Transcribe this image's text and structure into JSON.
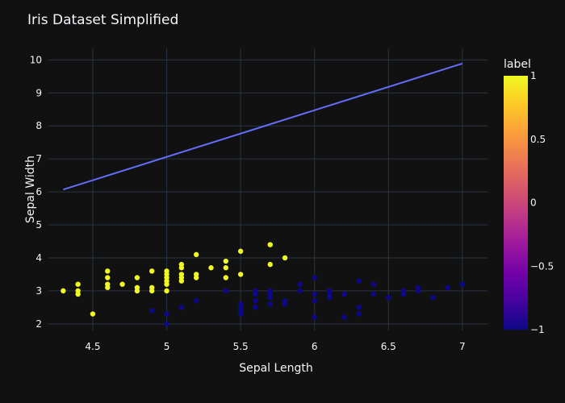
{
  "chart_data": {
    "type": "scatter",
    "title": "Iris Dataset Simplified",
    "xlabel": "Sepal Length",
    "ylabel": "Sepal Width",
    "xlim": [
      4.2,
      7.17
    ],
    "ylim": [
      1.8,
      10.35
    ],
    "x_ticks": [
      4.5,
      5,
      5.5,
      6,
      6.5,
      7
    ],
    "y_ticks": [
      2,
      3,
      4,
      5,
      6,
      7,
      8,
      9,
      10
    ],
    "grid": true,
    "colorbar": {
      "title": "label",
      "range": [
        -1,
        1
      ],
      "ticks": [
        1,
        0.5,
        0,
        -0.5,
        -1
      ],
      "tick_labels": [
        "1",
        "0.5",
        "0",
        "−0.5",
        "−1"
      ],
      "colorscale": [
        "#0d0887",
        "#46039f",
        "#7201a8",
        "#9c179e",
        "#bd3786",
        "#d8576b",
        "#ed7953",
        "#fb9f3a",
        "#fdca26",
        "#f0f921"
      ]
    },
    "line": {
      "x": [
        4.3,
        7.0
      ],
      "y": [
        6.07,
        9.89
      ],
      "color": "#636efa"
    },
    "series": [
      {
        "label": 1,
        "color": "#f0f921",
        "points": [
          [
            4.3,
            3.0
          ],
          [
            4.4,
            2.9
          ],
          [
            4.4,
            3.0
          ],
          [
            4.4,
            3.2
          ],
          [
            4.5,
            2.3
          ],
          [
            4.6,
            3.1
          ],
          [
            4.6,
            3.2
          ],
          [
            4.6,
            3.4
          ],
          [
            4.6,
            3.6
          ],
          [
            4.7,
            3.2
          ],
          [
            4.8,
            3.0
          ],
          [
            4.8,
            3.1
          ],
          [
            4.8,
            3.4
          ],
          [
            4.9,
            3.0
          ],
          [
            4.9,
            3.1
          ],
          [
            4.9,
            3.6
          ],
          [
            5.0,
            3.0
          ],
          [
            5.0,
            3.2
          ],
          [
            5.0,
            3.3
          ],
          [
            5.0,
            3.4
          ],
          [
            5.0,
            3.5
          ],
          [
            5.0,
            3.6
          ],
          [
            5.1,
            3.3
          ],
          [
            5.1,
            3.4
          ],
          [
            5.1,
            3.5
          ],
          [
            5.1,
            3.7
          ],
          [
            5.1,
            3.8
          ],
          [
            5.2,
            3.4
          ],
          [
            5.2,
            3.5
          ],
          [
            5.2,
            4.1
          ],
          [
            5.3,
            3.7
          ],
          [
            5.4,
            3.4
          ],
          [
            5.4,
            3.7
          ],
          [
            5.4,
            3.9
          ],
          [
            5.5,
            3.5
          ],
          [
            5.5,
            4.2
          ],
          [
            5.7,
            3.8
          ],
          [
            5.7,
            4.4
          ],
          [
            5.8,
            4.0
          ]
        ]
      },
      {
        "label": -1,
        "color": "#0d0887",
        "points": [
          [
            4.9,
            2.4
          ],
          [
            5.0,
            2.0
          ],
          [
            5.0,
            2.3
          ],
          [
            5.1,
            2.5
          ],
          [
            5.2,
            2.7
          ],
          [
            5.4,
            3.0
          ],
          [
            5.5,
            2.3
          ],
          [
            5.5,
            2.4
          ],
          [
            5.5,
            2.5
          ],
          [
            5.5,
            2.6
          ],
          [
            5.6,
            2.5
          ],
          [
            5.6,
            2.7
          ],
          [
            5.6,
            2.9
          ],
          [
            5.6,
            3.0
          ],
          [
            5.7,
            2.6
          ],
          [
            5.7,
            2.8
          ],
          [
            5.7,
            2.9
          ],
          [
            5.7,
            3.0
          ],
          [
            5.8,
            2.6
          ],
          [
            5.8,
            2.7
          ],
          [
            5.9,
            3.0
          ],
          [
            5.9,
            3.2
          ],
          [
            6.0,
            2.2
          ],
          [
            6.0,
            2.7
          ],
          [
            6.0,
            2.9
          ],
          [
            6.0,
            3.4
          ],
          [
            6.1,
            2.8
          ],
          [
            6.1,
            2.9
          ],
          [
            6.1,
            3.0
          ],
          [
            6.2,
            2.2
          ],
          [
            6.2,
            2.9
          ],
          [
            6.3,
            2.3
          ],
          [
            6.3,
            2.5
          ],
          [
            6.3,
            3.3
          ],
          [
            6.4,
            2.9
          ],
          [
            6.4,
            3.2
          ],
          [
            6.5,
            2.8
          ],
          [
            6.6,
            2.9
          ],
          [
            6.6,
            3.0
          ],
          [
            6.7,
            3.0
          ],
          [
            6.7,
            3.1
          ],
          [
            6.8,
            2.8
          ],
          [
            6.9,
            3.1
          ],
          [
            7.0,
            3.2
          ]
        ]
      }
    ]
  }
}
